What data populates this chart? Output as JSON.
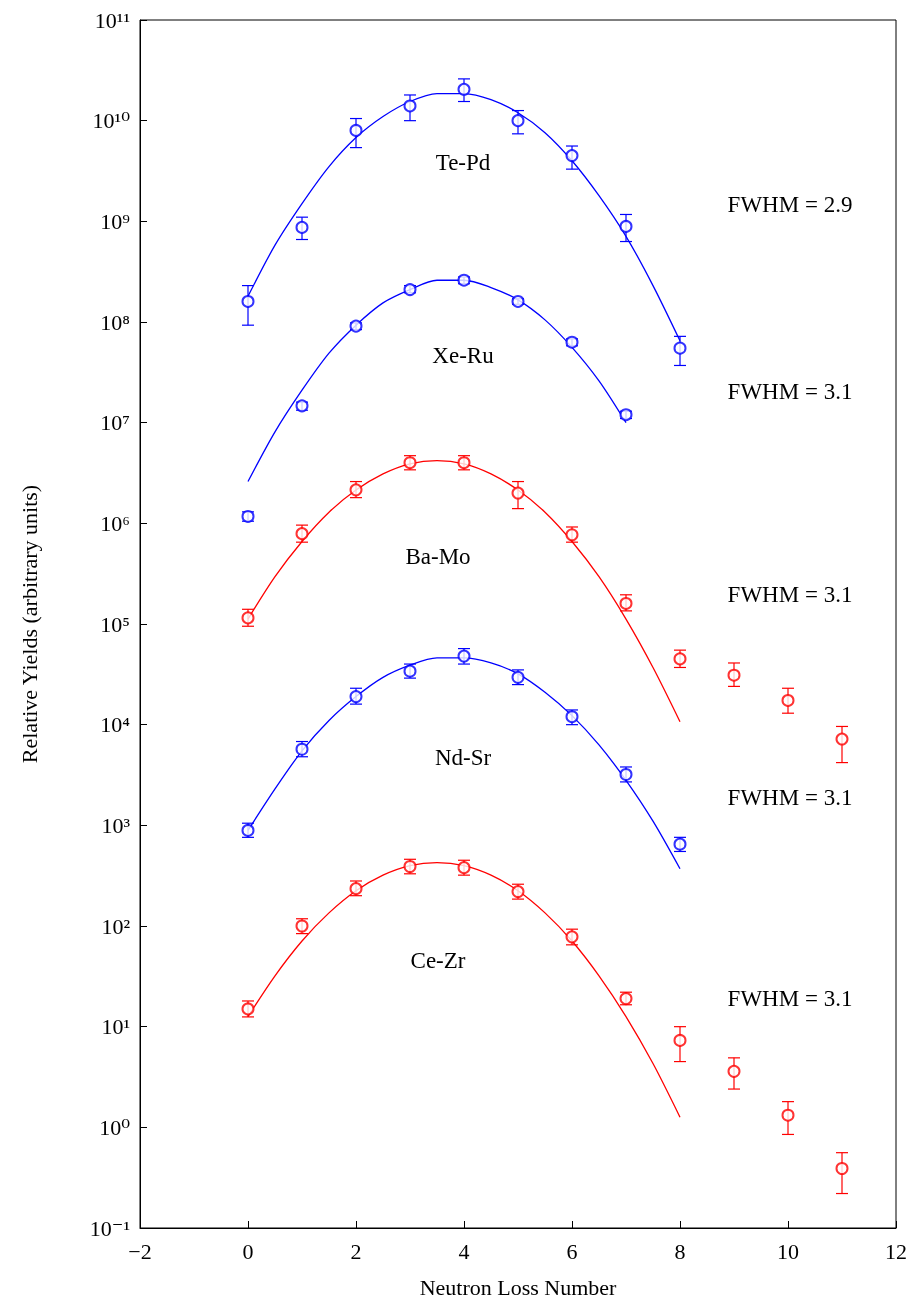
{
  "chart_data": {
    "type": "scatter",
    "xlabel": "Neutron Loss Number",
    "ylabel": "Relative Yields (arbitrary units)",
    "log": "y",
    "grid": false,
    "marker": "circle",
    "xlim": [
      -2,
      12
    ],
    "xticks": [
      -2,
      0,
      2,
      4,
      6,
      8,
      10,
      12
    ],
    "ylim": [
      0.1,
      100000000000.0
    ],
    "yticks": [
      {
        "value": 0.1,
        "label": "10⁻¹"
      },
      {
        "value": 1,
        "label": "10⁰"
      },
      {
        "value": 10,
        "label": "10¹"
      },
      {
        "value": 100,
        "label": "10²"
      },
      {
        "value": 1000.0,
        "label": "10³"
      },
      {
        "value": 10000.0,
        "label": "10⁴"
      },
      {
        "value": 100000.0,
        "label": "10⁵"
      },
      {
        "value": 1000000.0,
        "label": "10⁶"
      },
      {
        "value": 10000000.0,
        "label": "10⁷"
      },
      {
        "value": 100000000.0,
        "label": "10⁸"
      },
      {
        "value": 1000000000.0,
        "label": "10⁹"
      },
      {
        "value": 10000000000.0,
        "label": "10¹⁰"
      },
      {
        "value": 100000000000.0,
        "label": "10¹¹"
      }
    ],
    "annotations": [
      "Te-Pd",
      "Xe-Ru",
      "Ba-Mo",
      "Nd-Sr",
      "Ce-Zr",
      "FWHM = 2.9",
      "FWHM = 3.1",
      "FWHM = 3.1",
      "FWHM = 3.1",
      "FWHM = 3.1"
    ],
    "series": [
      {
        "color": "#0000ff",
        "x": [
          0,
          1,
          2,
          3,
          4,
          5,
          6,
          7,
          8
        ],
        "values": [
          160000000.0,
          870000000.0,
          8000000000.0,
          14000000000.0,
          20500000000.0,
          10000000000.0,
          4500000000.0,
          890000000.0,
          55000000.0
        ],
        "errors": [
          [
            93000000.0,
            230000000.0
          ],
          [
            660000000.0,
            1100000000.0
          ],
          [
            5400000000.0,
            10500000000.0
          ],
          [
            10000000000.0,
            18000000000.0
          ],
          [
            15500000000.0,
            26000000000.0
          ],
          [
            7400000000.0,
            12600000000.0
          ],
          [
            3300000000.0,
            5600000000.0
          ],
          [
            630000000.0,
            1170000000.0
          ],
          [
            37000000.0,
            72000000.0
          ]
        ]
      },
      {
        "type": "line",
        "marker": "none",
        "color": "#0000ff",
        "x": [
          0,
          0.5,
          1,
          1.5,
          2,
          2.5,
          3,
          3.5,
          4,
          4.5,
          5,
          5.5,
          6,
          6.5,
          7,
          7.5,
          8
        ],
        "values": [
          180000000.0,
          580000000.0,
          1500000000.0,
          3500000000.0,
          6800000000.0,
          11000000000.0,
          15500000000.0,
          18600000000.0,
          18600000000.0,
          16200000000.0,
          12000000000.0,
          7600000000.0,
          4000000000.0,
          1800000000.0,
          710000000.0,
          230000000.0,
          65000000.0
        ]
      },
      {
        "color": "#0000ff",
        "x": [
          0,
          1,
          2,
          3,
          4,
          5,
          6,
          7
        ],
        "values": [
          1170000.0,
          14700000.0,
          91000000.0,
          210000000.0,
          260000000.0,
          160000000.0,
          63000000.0,
          12000000.0
        ],
        "errors": [
          [
            1050000.0,
            1300000.0
          ],
          [
            13300000.0,
            16000000.0
          ],
          [
            84000000.0,
            98000000.0
          ],
          [
            195000000.0,
            230000000.0
          ],
          [
            240000000.0,
            280000000.0
          ],
          [
            150000000.0,
            170000000.0
          ],
          [
            58000000.0,
            68000000.0
          ],
          [
            11000000.0,
            13000000.0
          ]
        ]
      },
      {
        "type": "line",
        "marker": "none",
        "color": "#0000ff",
        "x": [
          0,
          0.5,
          1,
          1.5,
          2,
          2.5,
          3,
          3.5,
          4,
          4.5,
          5,
          5.5,
          6,
          6.5,
          7
        ],
        "values": [
          2600000.0,
          8100000.0,
          21000000.0,
          49000000.0,
          93000000.0,
          155000000.0,
          210000000.0,
          260000000.0,
          260000000.0,
          220000000.0,
          166000000.0,
          105000000.0,
          56000000.0,
          26000000.0,
          10000000.0
        ]
      },
      {
        "color": "#ff0000",
        "x": [
          0,
          1,
          2,
          3,
          4,
          5,
          6,
          7,
          8,
          9,
          10,
          11
        ],
        "values": [
          115000.0,
          790000.0,
          2150000.0,
          4000000.0,
          4000000.0,
          2000000.0,
          770000.0,
          160000.0,
          45000.0,
          31000.0,
          17400.0,
          7200.0
        ],
        "errors": [
          [
            95000.0,
            140000.0
          ],
          [
            650000.0,
            960000.0
          ],
          [
            1800000.0,
            2600000.0
          ],
          [
            3400000.0,
            4700000.0
          ],
          [
            3400000.0,
            4700000.0
          ],
          [
            1400000.0,
            2600000.0
          ],
          [
            650000.0,
            920000.0
          ],
          [
            135000.0,
            195000.0
          ],
          [
            37000.0,
            55000.0
          ],
          [
            24000.0,
            41000.0
          ],
          [
            13000.0,
            23000.0
          ],
          [
            4200.0,
            9600.0
          ]
        ]
      },
      {
        "type": "line",
        "marker": "none",
        "color": "#ff0000",
        "x": [
          0,
          0.5,
          1,
          1.5,
          2,
          2.5,
          3,
          3.5,
          4,
          4.5,
          5,
          5.5,
          6,
          6.5,
          7,
          7.5,
          8
        ],
        "values": [
          112000.0,
          295000.0,
          660000.0,
          1290000.0,
          2140000.0,
          3100000.0,
          3900000.0,
          4200000.0,
          3900000.0,
          3100000.0,
          2140000.0,
          1290000.0,
          660000.0,
          295000.0,
          112000.0,
          37000.0,
          10700.0
        ]
      },
      {
        "color": "#0000ff",
        "x": [
          0,
          1,
          2,
          3,
          4,
          5,
          6,
          7,
          8
        ],
        "values": [
          890,
          5700.0,
          19000.0,
          34000.0,
          48000.0,
          29500.0,
          12000.0,
          3200.0,
          650
        ],
        "errors": [
          [
            760,
            1050
          ],
          [
            4800.0,
            6800.0
          ],
          [
            16000.0,
            23000.0
          ],
          [
            29000.0,
            40000.0
          ],
          [
            40000.0,
            57000.0
          ],
          [
            25000.0,
            35000.0
          ],
          [
            10000.0,
            14000.0
          ],
          [
            2700.0,
            3800.0
          ],
          [
            550,
            760
          ]
        ]
      },
      {
        "type": "line",
        "marker": "none",
        "color": "#0000ff",
        "x": [
          0,
          0.5,
          1,
          1.5,
          2,
          2.5,
          3,
          3.5,
          4,
          4.5,
          5,
          5.5,
          6,
          6.5,
          7,
          7.5,
          8
        ],
        "values": [
          890,
          2300.0,
          5500.0,
          11000.0,
          19000.0,
          29500.0,
          39000.0,
          46000.0,
          46000.0,
          41000.0,
          32000.0,
          21000.0,
          12300.0,
          6300.0,
          2800.0,
          1100.0,
          370
        ]
      },
      {
        "color": "#ff0000",
        "x": [
          0,
          1,
          2,
          3,
          4,
          5,
          6,
          7,
          8,
          9,
          10,
          11
        ],
        "values": [
          15,
          100,
          235,
          390,
          380,
          220,
          78,
          19,
          7.3,
          3.6,
          1.32,
          0.39
        ],
        "errors": [
          [
            12.5,
            18
          ],
          [
            84,
            118
          ],
          [
            200,
            280
          ],
          [
            330,
            460
          ],
          [
            320,
            450
          ],
          [
            185,
            260
          ],
          [
            65,
            93
          ],
          [
            16.5,
            22
          ],
          [
            4.5,
            10
          ],
          [
            2.4,
            4.9
          ],
          [
            0.85,
            1.8
          ],
          [
            0.22,
            0.56
          ]
        ]
      },
      {
        "type": "line",
        "marker": "none",
        "color": "#ff0000",
        "x": [
          0,
          0.5,
          1,
          1.5,
          2,
          2.5,
          3,
          3.5,
          4,
          4.5,
          5,
          5.5,
          6,
          6.5,
          7,
          7.5,
          8
        ],
        "values": [
          12.6,
          32,
          71,
          135,
          224,
          320,
          398,
          427,
          398,
          320,
          224,
          135,
          71,
          32,
          12.6,
          4.3,
          1.26
        ]
      }
    ]
  }
}
